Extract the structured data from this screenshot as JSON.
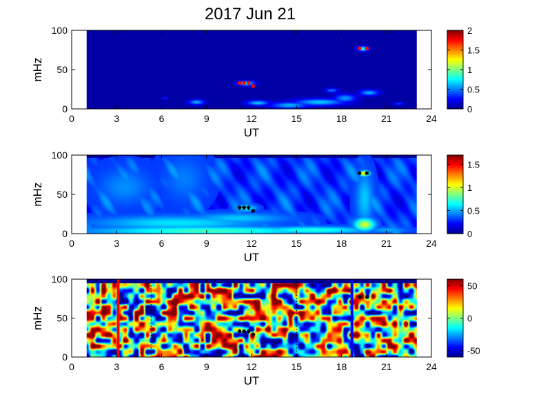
{
  "figure": {
    "title": "2017 Jun 21"
  },
  "colormap": [
    "#00008f",
    "#0000ff",
    "#0080ff",
    "#00ffff",
    "#80ff80",
    "#ffff00",
    "#ff8000",
    "#ff0000",
    "#800000"
  ],
  "chart_data": [
    {
      "type": "heatmap",
      "panel": "top",
      "xlabel": "UT",
      "ylabel": "mHz",
      "xlim": [
        0,
        24
      ],
      "ylim": [
        0,
        100
      ],
      "xticks": [
        0,
        3,
        6,
        9,
        12,
        15,
        18,
        21,
        24
      ],
      "yticks": [
        0,
        50,
        100
      ],
      "data_range": [
        1,
        23
      ],
      "colorbar": {
        "min": 0,
        "max": 2,
        "ticks": [
          0,
          0.5,
          1,
          1.5,
          2
        ],
        "tick_labels": [
          "0",
          "0.5",
          "1",
          "1.5",
          "2"
        ]
      },
      "background_value": 0.05,
      "blobs": [
        {
          "x": 8.3,
          "y": 9,
          "rx": 0.5,
          "ry": 3,
          "v": 0.6
        },
        {
          "x": 12.4,
          "y": 8,
          "rx": 0.7,
          "ry": 3,
          "v": 0.65
        },
        {
          "x": 14.5,
          "y": 5,
          "rx": 1.2,
          "ry": 4,
          "v": 0.6
        },
        {
          "x": 16.5,
          "y": 9,
          "rx": 1.6,
          "ry": 4,
          "v": 0.65
        },
        {
          "x": 18.2,
          "y": 14,
          "rx": 0.7,
          "ry": 5,
          "v": 0.55
        },
        {
          "x": 17.3,
          "y": 24,
          "rx": 0.4,
          "ry": 2.5,
          "v": 0.5
        },
        {
          "x": 19.8,
          "y": 21,
          "rx": 0.6,
          "ry": 3.5,
          "v": 0.6
        },
        {
          "x": 11.6,
          "y": 33,
          "rx": 0.5,
          "ry": 3,
          "v": 0.75
        },
        {
          "x": 19.4,
          "y": 77,
          "rx": 0.35,
          "ry": 3,
          "v": 0.8
        },
        {
          "x": 6.2,
          "y": 14,
          "rx": 0.2,
          "ry": 1.2,
          "v": 0.35
        },
        {
          "x": 21.8,
          "y": 7,
          "rx": 0.3,
          "ry": 1.5,
          "v": 0.4
        }
      ],
      "markers": [
        {
          "x": 11.2,
          "y": 33,
          "color": "#ff0000"
        },
        {
          "x": 11.5,
          "y": 33,
          "color": "#ff0000"
        },
        {
          "x": 11.8,
          "y": 33,
          "color": "#ff0000"
        },
        {
          "x": 12.1,
          "y": 29,
          "color": "#ff0000"
        },
        {
          "x": 19.2,
          "y": 77,
          "color": "#ff0000"
        },
        {
          "x": 19.7,
          "y": 77,
          "color": "#ff0000"
        }
      ]
    },
    {
      "type": "heatmap",
      "panel": "middle",
      "xlabel": "UT",
      "ylabel": "mHz",
      "xlim": [
        0,
        24
      ],
      "ylim": [
        0,
        100
      ],
      "xticks": [
        0,
        3,
        6,
        9,
        12,
        15,
        18,
        21,
        24
      ],
      "yticks": [
        0,
        50,
        100
      ],
      "data_range": [
        1,
        23
      ],
      "colorbar": {
        "min": 0,
        "max": 1.7,
        "ticks": [
          0,
          0.5,
          1,
          1.5
        ],
        "tick_labels": [
          "0",
          "0.5",
          "1",
          "1.5"
        ]
      },
      "background_value": 0.3,
      "blobs": [
        {
          "x": 9,
          "y": 4,
          "rx": 7,
          "ry": 5,
          "v": 0.75
        },
        {
          "x": 7,
          "y": 14,
          "rx": 5,
          "ry": 8,
          "v": 0.6
        },
        {
          "x": 16,
          "y": 5,
          "rx": 3.5,
          "ry": 4,
          "v": 0.7
        },
        {
          "x": 19.5,
          "y": 12,
          "rx": 0.6,
          "ry": 7,
          "v": 1.0
        },
        {
          "x": 19.5,
          "y": 45,
          "rx": 0.5,
          "ry": 30,
          "v": 0.55
        },
        {
          "x": 19.5,
          "y": 77,
          "rx": 0.3,
          "ry": 3,
          "v": 1.2
        },
        {
          "x": 11.6,
          "y": 33,
          "rx": 0.6,
          "ry": 4,
          "v": 0.65
        },
        {
          "x": 3.5,
          "y": 60,
          "rx": 1.5,
          "ry": 20,
          "v": 0.45
        },
        {
          "x": 7.5,
          "y": 70,
          "rx": 1.2,
          "ry": 25,
          "v": 0.42
        },
        {
          "x": 11,
          "y": 20,
          "rx": 3,
          "ry": 6,
          "v": 0.55
        },
        {
          "x": 21,
          "y": 5,
          "rx": 1.2,
          "ry": 3,
          "v": 0.5
        }
      ],
      "markers": [
        {
          "x": 11.2,
          "y": 33,
          "color": "#000000"
        },
        {
          "x": 11.5,
          "y": 33,
          "color": "#000000"
        },
        {
          "x": 11.8,
          "y": 33,
          "color": "#000000"
        },
        {
          "x": 12.1,
          "y": 29,
          "color": "#000000"
        },
        {
          "x": 19.2,
          "y": 77,
          "color": "#000000"
        },
        {
          "x": 19.7,
          "y": 77,
          "color": "#000000"
        }
      ]
    },
    {
      "type": "heatmap",
      "panel": "bottom",
      "xlabel": "UT",
      "ylabel": "mHz",
      "xlim": [
        0,
        24
      ],
      "ylim": [
        0,
        100
      ],
      "xticks": [
        0,
        3,
        6,
        9,
        12,
        15,
        18,
        21,
        24
      ],
      "yticks": [
        0,
        50,
        100
      ],
      "data_range": [
        1,
        23
      ],
      "colorbar": {
        "min": -60,
        "max": 60,
        "ticks": [
          -50,
          0,
          50
        ],
        "tick_labels": [
          "-50",
          "0",
          "50"
        ]
      },
      "background_value": 0,
      "noise": true,
      "vertical_lines": [
        {
          "x": 3.1,
          "color": "#ff0000",
          "style": "solid"
        },
        {
          "x": 18.7,
          "color": "#0000ff",
          "style": "solid"
        },
        {
          "x": 5.3,
          "color": "#000000",
          "style": "dotted"
        },
        {
          "x": 15.0,
          "color": "#000000",
          "style": "dotted"
        }
      ],
      "markers": [
        {
          "x": 11.2,
          "y": 33,
          "color": "#000000"
        },
        {
          "x": 11.5,
          "y": 33,
          "color": "#000000"
        },
        {
          "x": 11.8,
          "y": 33,
          "color": "#000000"
        },
        {
          "x": 12.1,
          "y": 29,
          "color": "#000000"
        },
        {
          "x": 19.2,
          "y": 77,
          "color": "#000000"
        },
        {
          "x": 19.7,
          "y": 77,
          "color": "#000000"
        }
      ]
    }
  ]
}
